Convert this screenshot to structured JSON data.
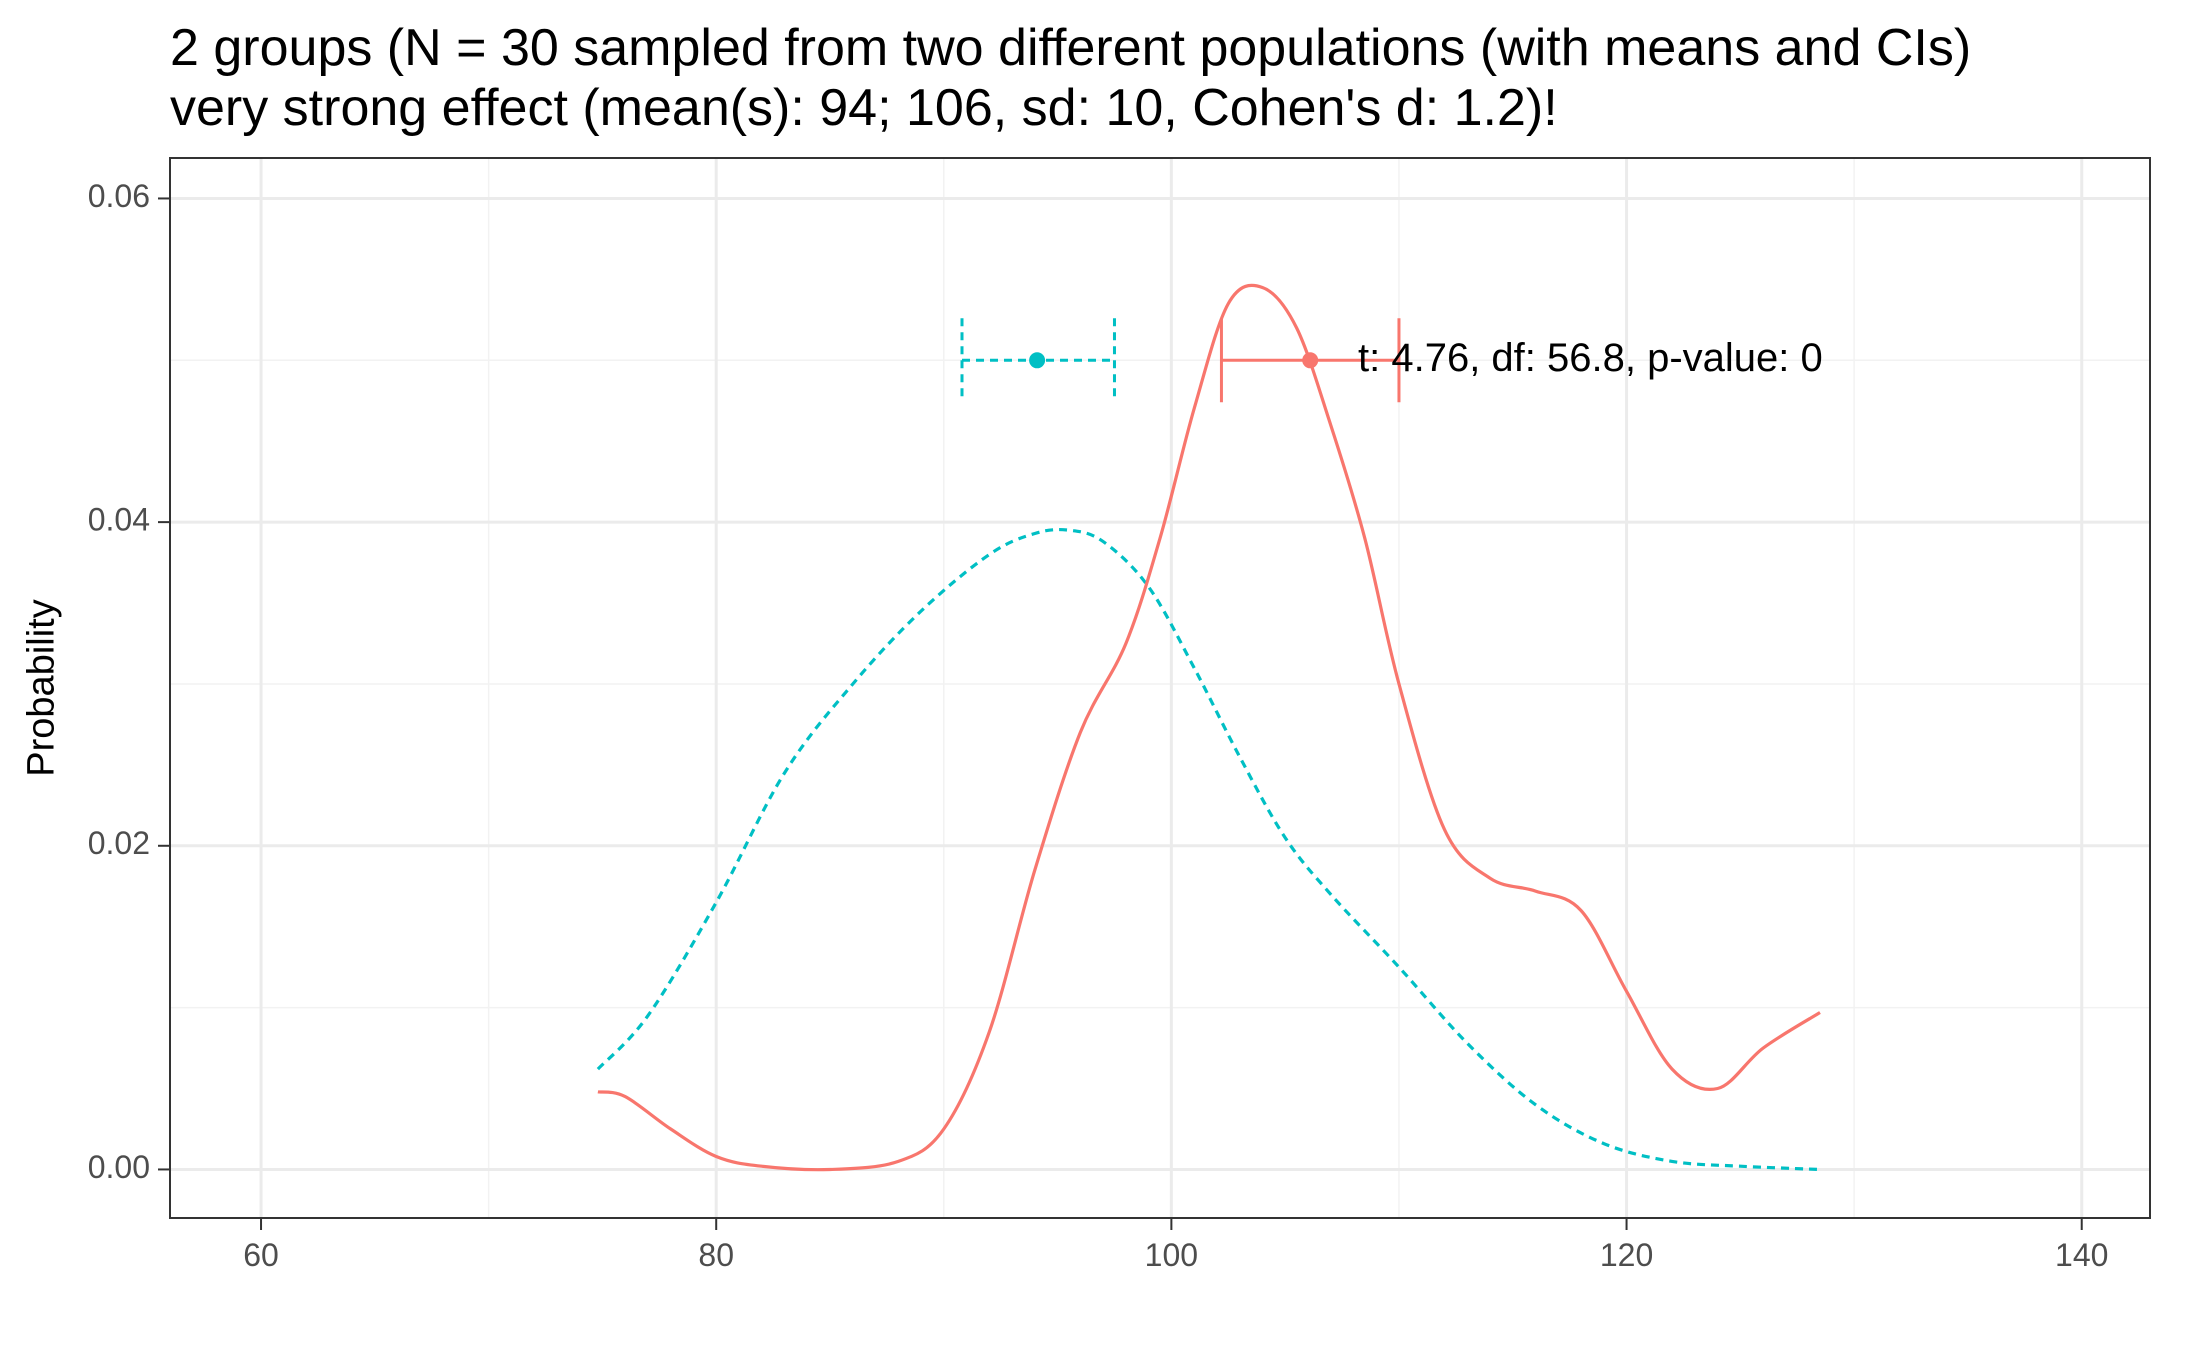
{
  "chart_data": {
    "type": "line",
    "title": "2 groups (N = 30 sampled from two different populations (with means and CIs)",
    "subtitle": "very strong effect (mean(s): 94; 106, sd: 10, Cohen's d: 1.2)!",
    "xlabel": "",
    "ylabel": "Probability",
    "xlim": [
      56,
      143
    ],
    "ylim": [
      -0.003,
      0.0625
    ],
    "x_ticks": [
      60,
      80,
      100,
      120,
      140
    ],
    "y_ticks": [
      0.0,
      0.02,
      0.04,
      0.06
    ],
    "x_tick_labels": [
      "60",
      "80",
      "100",
      "120",
      "140"
    ],
    "y_tick_labels": [
      "0.00",
      "0.02",
      "0.04",
      "0.06"
    ],
    "grid": true,
    "legend": "none",
    "series": [
      {
        "color": "#00BFC4",
        "linetype": "dashed",
        "x": [
          74.8,
          77,
          80,
          83,
          86,
          89,
          92,
          94,
          95.5,
          97,
          99,
          101,
          103,
          105,
          107,
          110,
          113,
          116,
          119,
          122,
          125,
          128.5
        ],
        "y": [
          0.0062,
          0.0095,
          0.0165,
          0.0245,
          0.03,
          0.0345,
          0.038,
          0.0393,
          0.0395,
          0.0388,
          0.036,
          0.031,
          0.0255,
          0.0205,
          0.017,
          0.0125,
          0.0078,
          0.004,
          0.0016,
          0.0005,
          0.0002,
          0.0
        ]
      },
      {
        "color": "#F8766D",
        "linetype": "solid",
        "x": [
          74.8,
          76,
          78,
          80,
          82,
          85,
          88,
          90,
          92,
          94,
          96,
          98,
          99.5,
          101,
          102.5,
          104,
          105.5,
          107,
          108.5,
          110,
          112,
          114,
          116,
          118,
          120,
          122,
          124,
          126,
          128.5
        ],
        "y": [
          0.0048,
          0.0045,
          0.0025,
          0.0008,
          0.0002,
          0.0,
          0.0005,
          0.0025,
          0.0085,
          0.0185,
          0.027,
          0.0325,
          0.039,
          0.047,
          0.0535,
          0.0545,
          0.052,
          0.046,
          0.039,
          0.03,
          0.021,
          0.018,
          0.0172,
          0.016,
          0.011,
          0.0062,
          0.005,
          0.0075,
          0.0097
        ]
      }
    ],
    "ci": [
      {
        "color": "#00BFC4",
        "linetype": "dashed",
        "mean": 94.1,
        "lower": 90.8,
        "upper": 97.5,
        "y": 0.05
      },
      {
        "color": "#F8766D",
        "linetype": "solid",
        "mean": 106.1,
        "lower": 102.2,
        "upper": 110.0,
        "y": 0.05
      }
    ],
    "annotation": {
      "text": "t: 4.76, df: 56.8, p-value: 0",
      "x": 108.2,
      "y": 0.05
    }
  }
}
